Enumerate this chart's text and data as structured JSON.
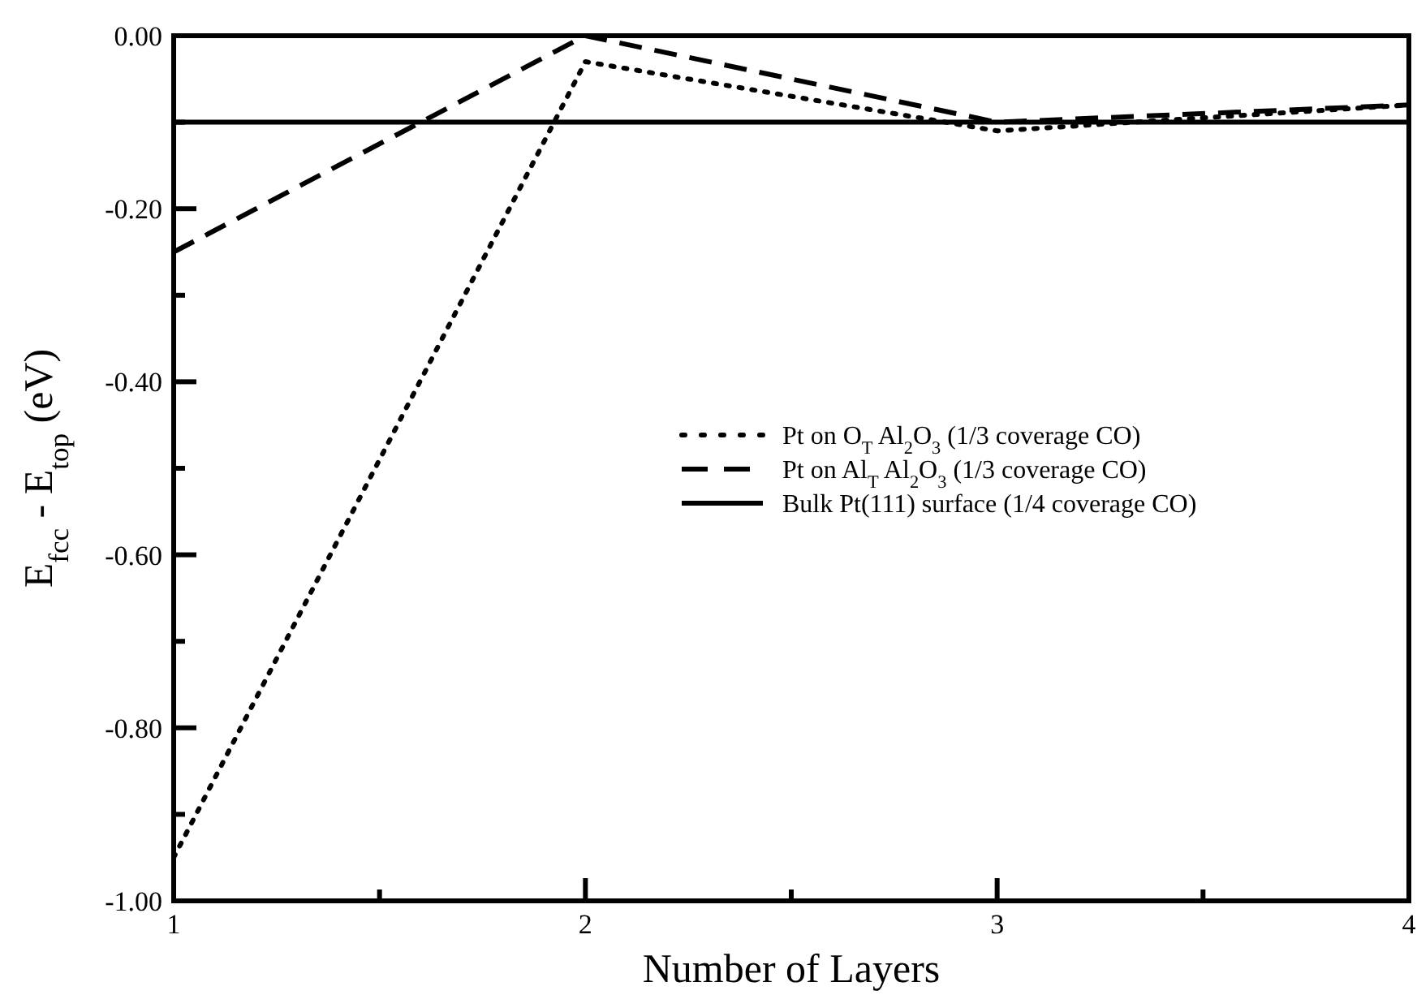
{
  "chart_data": {
    "type": "line",
    "xlabel": "Number of Layers",
    "ylabel": "E$_{fcc}$ - E$_{top}$ (eV)",
    "x": [
      1,
      2,
      3,
      4
    ],
    "series": [
      {
        "name": "Pt on O$_{T}$ Al$_{2}$O$_{3}$ (1/3 coverage CO)",
        "color": "#000000",
        "line_style": "dotted",
        "values": [
          -0.95,
          -0.03,
          -0.11,
          -0.08
        ]
      },
      {
        "name": "Pt on Al$_{T}$ Al$_{2}$O$_{3}$ (1/3 coverage CO)",
        "color": "#000000",
        "line_style": "dashed",
        "values": [
          -0.25,
          0.0,
          -0.1,
          -0.08
        ]
      },
      {
        "name": "Bulk Pt(111) surface (1/4 coverage CO)",
        "color": "#000000",
        "line_style": "solid",
        "values": [
          -0.1,
          -0.1,
          -0.1,
          -0.1
        ]
      }
    ],
    "xlim": [
      1,
      4
    ],
    "xticks": [
      1,
      {
        "value": 1.5,
        "label": null
      },
      2,
      {
        "value": 2.5,
        "label": null
      },
      3,
      {
        "value": 3.5,
        "label": null
      },
      4
    ],
    "ylim": [
      -1,
      0
    ],
    "yticks": [
      {
        "value": -1,
        "label": "-1.00"
      },
      {
        "value": -0.9,
        "label": null
      },
      {
        "value": -0.8,
        "label": "-0.80"
      },
      {
        "value": -0.7,
        "label": null
      },
      {
        "value": -0.6,
        "label": "-0.60"
      },
      {
        "value": -0.5,
        "label": null
      },
      {
        "value": -0.4,
        "label": "-0.40"
      },
      {
        "value": -0.3,
        "label": null
      },
      {
        "value": -0.2,
        "label": "-0.20"
      },
      {
        "value": -0.1,
        "label": null
      },
      {
        "value": 0,
        "label": "0.00"
      }
    ],
    "grid": false,
    "legend": "right",
    "marker": "none"
  }
}
